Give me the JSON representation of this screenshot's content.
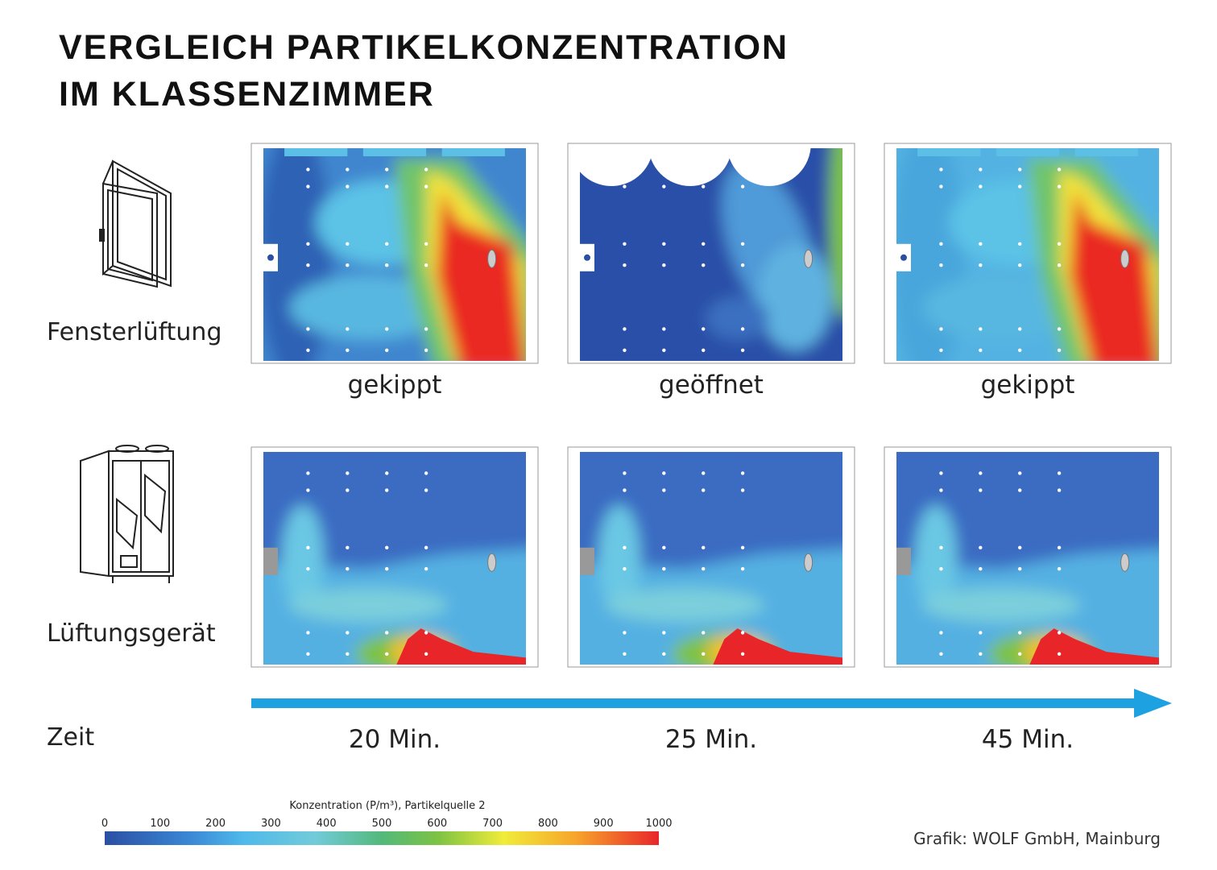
{
  "header": {
    "title_lines": [
      "VERGLEICH PARTIKELKONZENTRATION",
      "IM KLASSENZIMMER"
    ]
  },
  "rows": [
    "Fensterlüftung",
    "Lüftungsgerät"
  ],
  "columns": [
    "gekippt",
    "geöffnet",
    "gekippt"
  ],
  "time": {
    "label": "Zeit",
    "steps": [
      "20 Min.",
      "25 Min.",
      "45 Min."
    ]
  },
  "colorbar": {
    "title": "Konzentration (P/m³), Partikelquelle 2",
    "ticks": [
      0,
      100,
      200,
      300,
      400,
      500,
      600,
      700,
      800,
      900,
      1000
    ]
  },
  "credit": "Grafik: WOLF GmbH, Mainburg"
}
